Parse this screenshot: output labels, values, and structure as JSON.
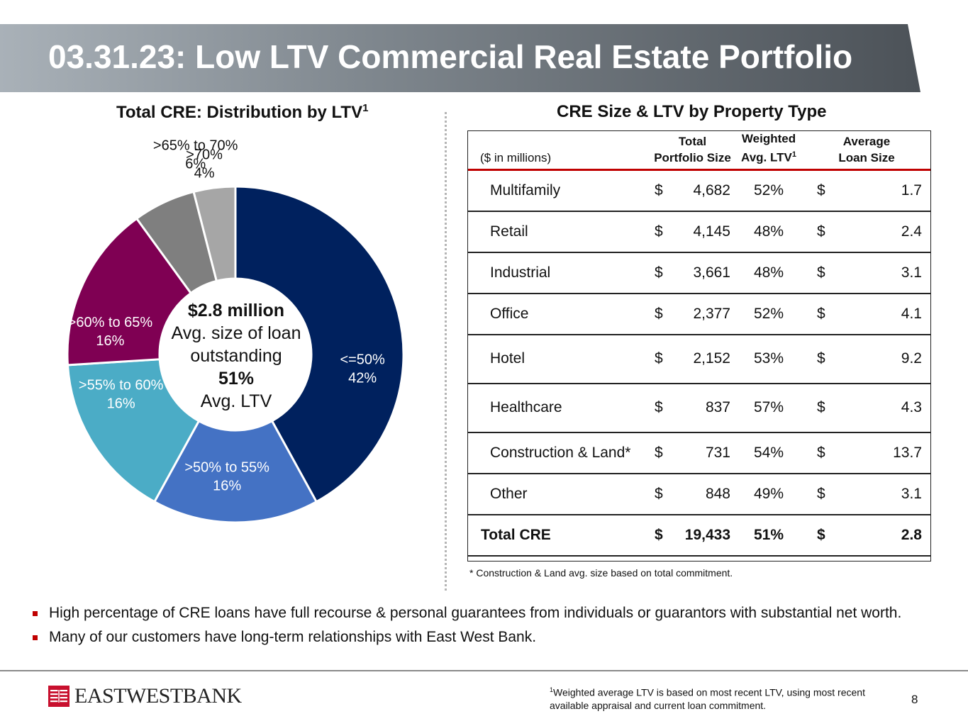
{
  "header": {
    "title": "03.31.23: Low LTV Commercial Real Estate Portfolio"
  },
  "left_section": {
    "title": "Total CRE: Distribution by LTV",
    "title_sup": "1"
  },
  "right_section": {
    "title": "CRE Size & LTV by Property Type"
  },
  "donut_center": {
    "line1": "$2.8 million",
    "line2": "Avg. size of loan",
    "line3": "outstanding",
    "line4": "51%",
    "line5": "Avg. LTV"
  },
  "chart_data": {
    "type": "pie",
    "variant": "donut",
    "title": "Total CRE: Distribution by LTV",
    "categories": [
      "<=50%",
      ">50% to 55%",
      ">55% to 60%",
      ">60% to 65%",
      ">65% to 70%",
      ">70%"
    ],
    "values": [
      42,
      16,
      16,
      16,
      6,
      4
    ],
    "value_labels": [
      "42%",
      "16%",
      "16%",
      "16%",
      "6%",
      "4%"
    ],
    "colors": [
      "#00215e",
      "#4472c4",
      "#4bacc6",
      "#7f0053",
      "#7f7f7f",
      "#a6a6a6"
    ],
    "label_colors": [
      "#ffffff",
      "#ffffff",
      "#ffffff",
      "#ffffff",
      "#111111",
      "#111111"
    ]
  },
  "table": {
    "units_label": "($ in millions)",
    "headers": {
      "total_line1": "Total",
      "total_line2": "Portfolio Size",
      "ltv_line1": "Weighted",
      "ltv_line2": "Avg. LTV",
      "ltv_sup": "1",
      "avg_line1": "Average",
      "avg_line2": "Loan Size"
    },
    "currency": "$",
    "rows": [
      {
        "name": "Multifamily",
        "total": "4,682",
        "ltv": "52%",
        "avg": "1.7"
      },
      {
        "name": "Retail",
        "total": "4,145",
        "ltv": "48%",
        "avg": "2.4"
      },
      {
        "name": "Industrial",
        "total": "3,661",
        "ltv": "48%",
        "avg": "3.1"
      },
      {
        "name": "Office",
        "total": "2,377",
        "ltv": "52%",
        "avg": "4.1"
      },
      {
        "name": "Hotel",
        "total": "2,152",
        "ltv": "53%",
        "avg": "9.2"
      },
      {
        "name": "Healthcare",
        "total": "837",
        "ltv": "57%",
        "avg": "4.3"
      },
      {
        "name": "Construction & Land*",
        "total": "731",
        "ltv": "54%",
        "avg": "13.7"
      },
      {
        "name": "Other",
        "total": "848",
        "ltv": "49%",
        "avg": "3.1"
      }
    ],
    "total_row": {
      "name": "Total CRE",
      "total": "19,433",
      "ltv": "51%",
      "avg": "2.8"
    },
    "footnote": "* Construction & Land avg. size based on total commitment."
  },
  "bullets": [
    "High percentage of CRE loans have full recourse & personal guarantees from individuals or guarantors with substantial net worth.",
    "Many of our customers have long-term relationships with East West Bank."
  ],
  "footer": {
    "logo_text": "EASTWESTBANK",
    "footnote_sup": "1",
    "footnote": "Weighted average LTV is based on most recent LTV, using most recent available appraisal and current loan commitment.",
    "page_number": "8"
  }
}
